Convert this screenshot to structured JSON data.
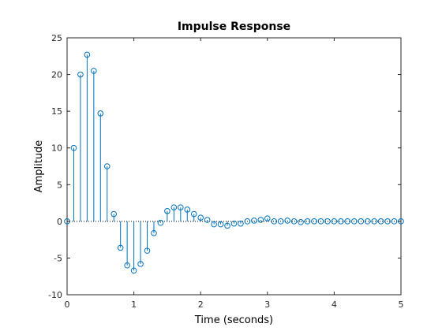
{
  "chart_data": {
    "type": "stem",
    "title": "Impulse Response",
    "xlabel": "Time (seconds)",
    "ylabel": "Amplitude",
    "xlim": [
      0,
      5
    ],
    "ylim": [
      -10,
      25
    ],
    "xticks": [
      0,
      1,
      2,
      3,
      4,
      5
    ],
    "yticks": [
      -10,
      -5,
      0,
      5,
      10,
      15,
      20,
      25
    ],
    "xtick_labels": [
      "0",
      "1",
      "2",
      "3",
      "4",
      "5"
    ],
    "ytick_labels": [
      "-10",
      "-5",
      "0",
      "5",
      "10",
      "15",
      "20",
      "25"
    ],
    "grid": false,
    "colors": {
      "stem": "#0072BD",
      "axes": "#262626",
      "baseline": "#000000"
    },
    "series": [
      {
        "x": [
          0.0,
          0.1,
          0.2,
          0.3,
          0.4,
          0.5,
          0.6,
          0.7,
          0.8,
          0.9,
          1.0,
          1.1,
          1.2,
          1.3,
          1.4,
          1.5,
          1.6,
          1.7,
          1.8,
          1.9,
          2.0,
          2.1,
          2.2,
          2.3,
          2.4,
          2.5,
          2.6,
          2.7,
          2.8,
          2.9,
          3.0,
          3.1,
          3.2,
          3.3,
          3.4,
          3.5,
          3.6,
          3.7,
          3.8,
          3.9,
          4.0,
          4.1,
          4.2,
          4.3,
          4.4,
          4.5,
          4.6,
          4.7,
          4.8,
          4.9,
          5.0
        ],
        "y": [
          0.0,
          10.0,
          20.0,
          22.7,
          20.5,
          14.7,
          7.5,
          1.0,
          -3.6,
          -6.0,
          -6.7,
          -5.8,
          -4.0,
          -1.6,
          -0.2,
          1.4,
          1.9,
          1.9,
          1.6,
          1.0,
          0.5,
          0.2,
          -0.4,
          -0.4,
          -0.6,
          -0.3,
          -0.3,
          0.0,
          0.1,
          0.2,
          0.4,
          0.0,
          0.0,
          0.1,
          0.0,
          -0.1,
          0.0,
          0.0,
          0.0,
          0.0,
          0.0,
          0.0,
          0.0,
          0.0,
          0.0,
          0.0,
          0.0,
          0.0,
          0.0,
          0.0,
          0.0
        ]
      }
    ]
  }
}
